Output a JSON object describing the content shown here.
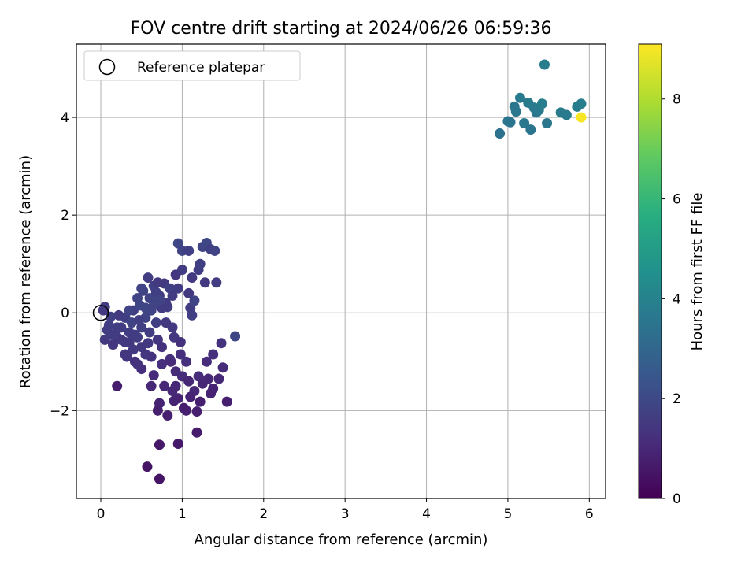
{
  "chart_data": {
    "type": "scatter",
    "title": "FOV centre drift starting at 2024/06/26 06:59:36",
    "xlabel": "Angular distance from reference (arcmin)",
    "ylabel": "Rotation from reference (arcmin)",
    "xlim": [
      -0.3,
      6.2
    ],
    "ylim": [
      -3.8,
      5.5
    ],
    "x_ticks": [
      0,
      1,
      2,
      3,
      4,
      5,
      6
    ],
    "y_ticks": [
      -2,
      0,
      2,
      4
    ],
    "x_tick_labels": [
      "0",
      "1",
      "2",
      "3",
      "4",
      "5",
      "6"
    ],
    "y_tick_labels": [
      "−2",
      "0",
      "2",
      "4"
    ],
    "grid": true,
    "legend": {
      "placement": "top-left",
      "entries": [
        "Reference platepar"
      ]
    },
    "colorbar": {
      "label": "Hours from first FF file",
      "colormap": "viridis",
      "range": [
        0,
        9.1
      ],
      "ticks": [
        0,
        2,
        4,
        6,
        8
      ],
      "tick_labels": [
        "0",
        "2",
        "4",
        "6",
        "8"
      ]
    },
    "reference_point": {
      "x": 0,
      "y": 0
    },
    "points": [
      {
        "x": 0.05,
        "y": 0.12,
        "c": 1.6
      },
      {
        "x": 0.03,
        "y": 0.05,
        "c": 1.5
      },
      {
        "x": 0.1,
        "y": -0.25,
        "c": 1.7
      },
      {
        "x": 0.05,
        "y": -0.55,
        "c": 1.5
      },
      {
        "x": 0.12,
        "y": -0.45,
        "c": 1.6
      },
      {
        "x": 0.15,
        "y": -0.65,
        "c": 1.4
      },
      {
        "x": 0.2,
        "y": -0.5,
        "c": 1.3
      },
      {
        "x": 0.22,
        "y": -0.05,
        "c": 1.5
      },
      {
        "x": 0.25,
        "y": -0.3,
        "c": 1.6
      },
      {
        "x": 0.3,
        "y": -0.1,
        "c": 1.7
      },
      {
        "x": 0.3,
        "y": -0.6,
        "c": 1.5
      },
      {
        "x": 0.32,
        "y": -0.9,
        "c": 1.4
      },
      {
        "x": 0.35,
        "y": -0.4,
        "c": 1.6
      },
      {
        "x": 0.38,
        "y": -0.2,
        "c": 1.8
      },
      {
        "x": 0.4,
        "y": -0.75,
        "c": 1.5
      },
      {
        "x": 0.4,
        "y": 0.05,
        "c": 1.7
      },
      {
        "x": 0.42,
        "y": -1.0,
        "c": 1.3
      },
      {
        "x": 0.45,
        "y": 0.3,
        "c": 1.8
      },
      {
        "x": 0.45,
        "y": -0.5,
        "c": 1.6
      },
      {
        "x": 0.48,
        "y": 0.15,
        "c": 1.9
      },
      {
        "x": 0.5,
        "y": -0.3,
        "c": 1.7
      },
      {
        "x": 0.5,
        "y": -0.7,
        "c": 1.5
      },
      {
        "x": 0.5,
        "y": -1.15,
        "c": 1.2
      },
      {
        "x": 0.52,
        "y": 0.45,
        "c": 1.8
      },
      {
        "x": 0.55,
        "y": 0.1,
        "c": 1.9
      },
      {
        "x": 0.55,
        "y": -0.1,
        "c": 1.8
      },
      {
        "x": 0.58,
        "y": 0.72,
        "c": 1.6
      },
      {
        "x": 0.6,
        "y": 0.3,
        "c": 1.8
      },
      {
        "x": 0.6,
        "y": -0.4,
        "c": 1.6
      },
      {
        "x": 0.62,
        "y": -0.9,
        "c": 1.3
      },
      {
        "x": 0.62,
        "y": -1.5,
        "c": 1.0
      },
      {
        "x": 0.65,
        "y": 0.55,
        "c": 1.7
      },
      {
        "x": 0.65,
        "y": 0.15,
        "c": 1.8
      },
      {
        "x": 0.68,
        "y": -0.2,
        "c": 1.7
      },
      {
        "x": 0.7,
        "y": 0.62,
        "c": 1.5
      },
      {
        "x": 0.7,
        "y": -0.55,
        "c": 1.4
      },
      {
        "x": 0.72,
        "y": 0.35,
        "c": 1.7
      },
      {
        "x": 0.72,
        "y": -1.85,
        "c": 0.9
      },
      {
        "x": 0.75,
        "y": 0.1,
        "c": 1.6
      },
      {
        "x": 0.75,
        "y": -0.7,
        "c": 1.3
      },
      {
        "x": 0.78,
        "y": 0.6,
        "c": 1.5
      },
      {
        "x": 0.78,
        "y": -1.5,
        "c": 1.0
      },
      {
        "x": 0.8,
        "y": 0.2,
        "c": 1.6
      },
      {
        "x": 0.8,
        "y": -0.2,
        "c": 1.5
      },
      {
        "x": 0.82,
        "y": -2.1,
        "c": 0.8
      },
      {
        "x": 0.85,
        "y": 0.5,
        "c": 1.7
      },
      {
        "x": 0.85,
        "y": -0.95,
        "c": 1.2
      },
      {
        "x": 0.88,
        "y": 0.35,
        "c": 1.6
      },
      {
        "x": 0.88,
        "y": -1.6,
        "c": 1.0
      },
      {
        "x": 0.9,
        "y": -0.5,
        "c": 1.4
      },
      {
        "x": 0.92,
        "y": 0.78,
        "c": 1.4
      },
      {
        "x": 0.92,
        "y": -1.2,
        "c": 1.1
      },
      {
        "x": 0.95,
        "y": 1.42,
        "c": 1.9
      },
      {
        "x": 0.95,
        "y": -1.75,
        "c": 0.9
      },
      {
        "x": 0.98,
        "y": -0.6,
        "c": 1.3
      },
      {
        "x": 1.0,
        "y": 1.27,
        "c": 1.8
      },
      {
        "x": 1.0,
        "y": 0.88,
        "c": 1.6
      },
      {
        "x": 1.0,
        "y": -1.3,
        "c": 1.1
      },
      {
        "x": 1.02,
        "y": -1.95,
        "c": 0.8
      },
      {
        "x": 1.05,
        "y": -1.0,
        "c": 1.2
      },
      {
        "x": 1.08,
        "y": 1.27,
        "c": 1.7
      },
      {
        "x": 1.08,
        "y": 0.4,
        "c": 1.5
      },
      {
        "x": 1.1,
        "y": 0.1,
        "c": 1.6
      },
      {
        "x": 1.12,
        "y": -0.05,
        "c": 1.7
      },
      {
        "x": 1.12,
        "y": 0.72,
        "c": 1.5
      },
      {
        "x": 1.15,
        "y": 0.25,
        "c": 1.8
      },
      {
        "x": 1.15,
        "y": -1.6,
        "c": 1.0
      },
      {
        "x": 1.18,
        "y": -2.02,
        "c": 0.8
      },
      {
        "x": 1.2,
        "y": 0.88,
        "c": 1.6
      },
      {
        "x": 1.2,
        "y": -1.3,
        "c": 1.1
      },
      {
        "x": 1.22,
        "y": 1.0,
        "c": 1.7
      },
      {
        "x": 1.25,
        "y": 1.35,
        "c": 1.8
      },
      {
        "x": 1.28,
        "y": 0.62,
        "c": 1.5
      },
      {
        "x": 1.3,
        "y": 1.43,
        "c": 1.9
      },
      {
        "x": 1.32,
        "y": -1.35,
        "c": 1.0
      },
      {
        "x": 1.35,
        "y": -1.65,
        "c": 0.9
      },
      {
        "x": 1.35,
        "y": 1.3,
        "c": 1.7
      },
      {
        "x": 1.38,
        "y": -0.85,
        "c": 1.2
      },
      {
        "x": 1.4,
        "y": 1.27,
        "c": 1.8
      },
      {
        "x": 1.42,
        "y": 0.62,
        "c": 1.6
      },
      {
        "x": 1.45,
        "y": -1.35,
        "c": 1.0
      },
      {
        "x": 1.48,
        "y": -0.62,
        "c": 1.3
      },
      {
        "x": 1.5,
        "y": -1.12,
        "c": 1.1
      },
      {
        "x": 1.55,
        "y": -1.82,
        "c": 0.8
      },
      {
        "x": 1.65,
        "y": -0.48,
        "c": 1.9
      },
      {
        "x": 1.38,
        "y": -1.55,
        "c": 0.9
      },
      {
        "x": 1.22,
        "y": -1.82,
        "c": 0.8
      },
      {
        "x": 1.18,
        "y": -2.45,
        "c": 0.7
      },
      {
        "x": 0.95,
        "y": -2.68,
        "c": 0.6
      },
      {
        "x": 0.72,
        "y": -2.7,
        "c": 0.6
      },
      {
        "x": 0.57,
        "y": -3.15,
        "c": 0.5
      },
      {
        "x": 0.72,
        "y": -3.4,
        "c": 0.5
      },
      {
        "x": 0.2,
        "y": -1.5,
        "c": 0.7
      },
      {
        "x": 0.7,
        "y": -2.0,
        "c": 0.8
      },
      {
        "x": 0.86,
        "y": -1.0,
        "c": 1.1
      },
      {
        "x": 1.1,
        "y": -1.72,
        "c": 0.9
      },
      {
        "x": 1.25,
        "y": -1.45,
        "c": 1.0
      },
      {
        "x": 1.05,
        "y": -2.0,
        "c": 0.8
      },
      {
        "x": 0.9,
        "y": -1.8,
        "c": 0.9
      },
      {
        "x": 0.65,
        "y": -1.28,
        "c": 1.1
      },
      {
        "x": 0.45,
        "y": -1.05,
        "c": 1.3
      },
      {
        "x": 0.3,
        "y": -0.85,
        "c": 1.4
      },
      {
        "x": 0.18,
        "y": -0.45,
        "c": 1.6
      },
      {
        "x": 0.25,
        "y": -0.55,
        "c": 1.5
      },
      {
        "x": 0.35,
        "y": 0.05,
        "c": 1.8
      },
      {
        "x": 0.58,
        "y": -0.62,
        "c": 1.5
      },
      {
        "x": 0.62,
        "y": 0.05,
        "c": 1.8
      },
      {
        "x": 0.68,
        "y": 0.42,
        "c": 1.7
      },
      {
        "x": 0.82,
        "y": 0.12,
        "c": 1.6
      },
      {
        "x": 0.88,
        "y": -0.3,
        "c": 1.5
      },
      {
        "x": 0.75,
        "y": -1.05,
        "c": 1.2
      },
      {
        "x": 0.55,
        "y": -0.85,
        "c": 1.4
      },
      {
        "x": 0.42,
        "y": -0.45,
        "c": 1.6
      },
      {
        "x": 0.47,
        "y": -0.15,
        "c": 1.7
      },
      {
        "x": 0.35,
        "y": -0.6,
        "c": 1.5
      },
      {
        "x": 0.2,
        "y": -0.3,
        "c": 1.6
      },
      {
        "x": 0.12,
        "y": -0.08,
        "c": 1.7
      },
      {
        "x": 0.08,
        "y": -0.35,
        "c": 1.6
      },
      {
        "x": 0.98,
        "y": -0.85,
        "c": 1.2
      },
      {
        "x": 1.08,
        "y": -1.4,
        "c": 1.0
      },
      {
        "x": 0.92,
        "y": -1.5,
        "c": 1.0
      },
      {
        "x": 1.3,
        "y": -1.0,
        "c": 1.1
      },
      {
        "x": 0.95,
        "y": 0.5,
        "c": 1.6
      },
      {
        "x": 0.72,
        "y": 0.25,
        "c": 1.8
      },
      {
        "x": 0.5,
        "y": 0.5,
        "c": 1.8
      },
      {
        "x": 4.9,
        "y": 3.67,
        "c": 3.4
      },
      {
        "x": 5.0,
        "y": 3.92,
        "c": 3.5
      },
      {
        "x": 5.03,
        "y": 3.9,
        "c": 3.5
      },
      {
        "x": 5.08,
        "y": 4.22,
        "c": 3.6
      },
      {
        "x": 5.1,
        "y": 4.12,
        "c": 3.6
      },
      {
        "x": 5.15,
        "y": 4.4,
        "c": 3.7
      },
      {
        "x": 5.2,
        "y": 3.88,
        "c": 3.6
      },
      {
        "x": 5.25,
        "y": 4.3,
        "c": 3.7
      },
      {
        "x": 5.28,
        "y": 3.75,
        "c": 3.5
      },
      {
        "x": 5.32,
        "y": 4.2,
        "c": 3.7
      },
      {
        "x": 5.35,
        "y": 4.1,
        "c": 3.6
      },
      {
        "x": 5.38,
        "y": 4.15,
        "c": 3.7
      },
      {
        "x": 5.42,
        "y": 4.28,
        "c": 3.8
      },
      {
        "x": 5.45,
        "y": 5.08,
        "c": 3.8
      },
      {
        "x": 5.48,
        "y": 3.88,
        "c": 3.6
      },
      {
        "x": 5.65,
        "y": 4.1,
        "c": 3.7
      },
      {
        "x": 5.72,
        "y": 4.05,
        "c": 3.7
      },
      {
        "x": 5.85,
        "y": 4.22,
        "c": 3.8
      },
      {
        "x": 5.9,
        "y": 4.28,
        "c": 3.8
      },
      {
        "x": 5.9,
        "y": 4.0,
        "c": 9.0
      }
    ]
  }
}
